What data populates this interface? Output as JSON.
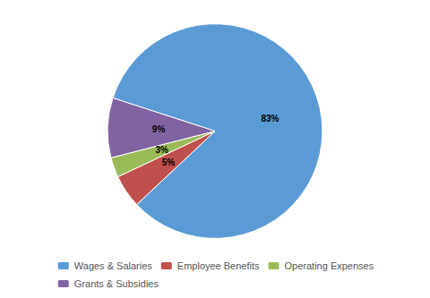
{
  "chart_data": {
    "type": "pie",
    "categories": [
      "Wages & Salaries",
      "Employee Benefits",
      "Operating Expenses",
      "Grants & Subsidies"
    ],
    "values": [
      83,
      5,
      3,
      9
    ],
    "value_labels": [
      "83%",
      "5%",
      "3%",
      "9%"
    ],
    "colors": [
      "#5b9bd5",
      "#c0504d",
      "#9bbb59",
      "#8064a2"
    ],
    "data_labels": true,
    "legend": "bottom"
  }
}
